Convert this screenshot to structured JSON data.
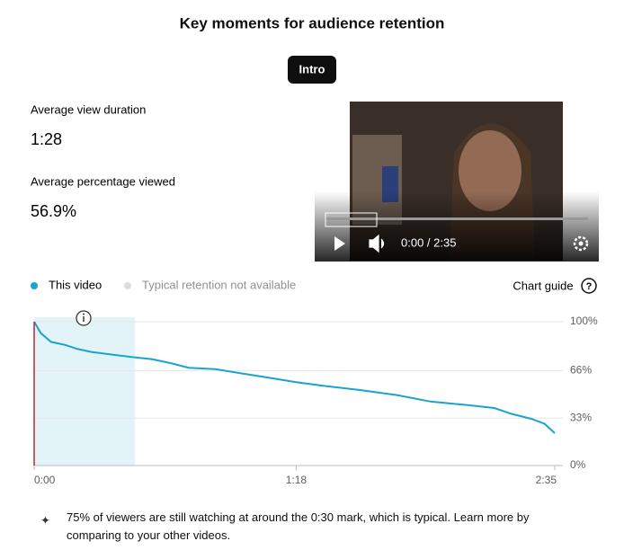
{
  "header": {
    "title": "Key moments for audience retention",
    "button": "Intro"
  },
  "stats": [
    {
      "label": "Average view duration",
      "value": "1:28"
    },
    {
      "label": "Average percentage viewed",
      "value": "56.9%"
    }
  ],
  "video": {
    "time": "0:00 / 2:35"
  },
  "legend_unavailable": "Typical retention not available",
  "chart_guide": "Chart guide",
  "chart_data": {
    "type": "line",
    "x": [
      0,
      0.5,
      2,
      5,
      9,
      13,
      17,
      22,
      29,
      35,
      41,
      46,
      54,
      62,
      70,
      78,
      86,
      97,
      108,
      118,
      129,
      137,
      142,
      148,
      152,
      155
    ],
    "series": [
      {
        "name": "This video",
        "color": "#1aa3cf",
        "values": [
          100,
          98,
          92,
          86,
          84,
          81,
          79,
          77.5,
          75.5,
          74,
          71,
          68,
          67,
          64,
          61,
          58,
          55.5,
          52.5,
          49,
          44.5,
          42,
          40,
          36,
          32.5,
          29,
          22.5
        ]
      }
    ],
    "xlim": [
      0,
      155
    ],
    "ylim": [
      0,
      100
    ],
    "xticks": [
      {
        "value": 0,
        "label": "0:00"
      },
      {
        "value": 78,
        "label": "1:18"
      },
      {
        "value": 155,
        "label": "2:35"
      }
    ],
    "yticks": [
      {
        "value": 0,
        "label": "0%"
      },
      {
        "value": 33,
        "label": "33%"
      },
      {
        "value": 66,
        "label": "66%"
      },
      {
        "value": 100,
        "label": "100%"
      }
    ],
    "key_moment_range": [
      0,
      30
    ],
    "grid": true
  },
  "footer": {
    "text": "75% of viewers are still watching at around the 0:30 mark, which is typical. Learn more by comparing to your other videos."
  }
}
